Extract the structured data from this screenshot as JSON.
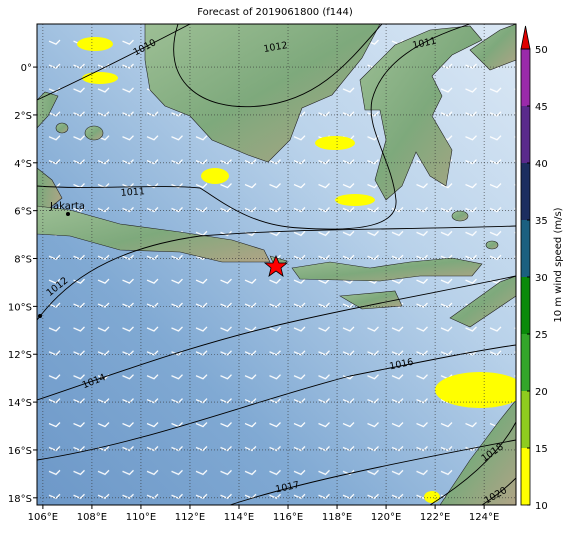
{
  "title": "Forecast of 2019061800 (f144)",
  "map": {
    "lonlim": [
      105.76,
      125.3
    ],
    "latlim": [
      1.8,
      -18.3
    ],
    "lon_ticks": [
      {
        "value": 106,
        "label": "106°E"
      },
      {
        "value": 108,
        "label": "108°E"
      },
      {
        "value": 110,
        "label": "110°E"
      },
      {
        "value": 112,
        "label": "112°E"
      },
      {
        "value": 114,
        "label": "114°E"
      },
      {
        "value": 116,
        "label": "116°E"
      },
      {
        "value": 118,
        "label": "118°E"
      },
      {
        "value": 120,
        "label": "120°E"
      },
      {
        "value": 122,
        "label": "122°E"
      },
      {
        "value": 124,
        "label": "124°E"
      }
    ],
    "lat_ticks": [
      {
        "value": 0,
        "label": "0°"
      },
      {
        "value": -2,
        "label": "2°S"
      },
      {
        "value": -4,
        "label": "4°S"
      },
      {
        "value": -6,
        "label": "6°S"
      },
      {
        "value": -8,
        "label": "8°S"
      },
      {
        "value": -10,
        "label": "10°S"
      },
      {
        "value": -12,
        "label": "12°S"
      },
      {
        "value": -14,
        "label": "14°S"
      },
      {
        "value": -16,
        "label": "16°S"
      },
      {
        "value": -18,
        "label": "18°S"
      }
    ],
    "place_label": "Jakarta",
    "contour_labels": [
      1010,
      1012,
      1011,
      1011,
      1012,
      1014,
      1016,
      1017,
      1018,
      1020
    ]
  },
  "colorbar": {
    "label": "10 m wind speed (m/s)",
    "lim": [
      10,
      50
    ],
    "ticks": [
      10,
      15,
      20,
      25,
      30,
      35,
      40,
      45,
      50
    ],
    "colors": [
      "#ffff00",
      "#8fcc1f",
      "#33a62a",
      "#0a8a0a",
      "#1b6080",
      "#1c2e60",
      "#5a2a8c",
      "#9a2aaa"
    ],
    "extend_color": "#e00000"
  }
}
